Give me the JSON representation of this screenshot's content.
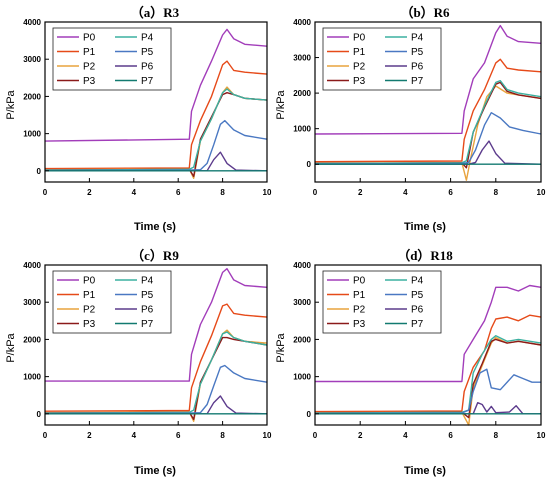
{
  "chart_data": [
    {
      "type": "line",
      "title": "（a）R3",
      "xlabel": "Time (s)",
      "ylabel": "P/kPa",
      "xlim": [
        0,
        10
      ],
      "ylim": [
        -300,
        4000
      ],
      "xticks": [
        "0",
        "2",
        "4",
        "6",
        "8",
        "10"
      ],
      "yticks": [
        "0",
        "1000",
        "2000",
        "3000",
        "4000"
      ],
      "legend_placement": "top-left",
      "series": [
        {
          "name": "P0",
          "color": "#a23dba",
          "x": [
            0,
            6.5,
            6.6,
            7.0,
            7.5,
            8.0,
            8.2,
            8.5,
            9.0,
            10
          ],
          "y": [
            800,
            850,
            1600,
            2300,
            2950,
            3650,
            3800,
            3550,
            3400,
            3350
          ]
        },
        {
          "name": "P1",
          "color": "#e64a19",
          "x": [
            0,
            6.5,
            6.6,
            7.0,
            7.5,
            8.0,
            8.2,
            8.5,
            9.0,
            10
          ],
          "y": [
            60,
            80,
            700,
            1350,
            2000,
            2850,
            2950,
            2700,
            2650,
            2600
          ]
        },
        {
          "name": "P2",
          "color": "#e8a33d",
          "x": [
            0,
            6.5,
            6.7,
            7.0,
            7.5,
            8.0,
            8.2,
            8.5,
            9.0,
            10
          ],
          "y": [
            30,
            50,
            -200,
            800,
            1400,
            2100,
            2250,
            2050,
            1950,
            1900
          ]
        },
        {
          "name": "P3",
          "color": "#8b1a1a",
          "x": [
            0,
            6.5,
            6.7,
            7.0,
            7.5,
            8.0,
            8.2,
            8.5,
            9.0,
            10
          ],
          "y": [
            20,
            40,
            -150,
            850,
            1450,
            2050,
            2100,
            2050,
            1950,
            1900
          ]
        },
        {
          "name": "P4",
          "color": "#3cb0a0",
          "x": [
            0,
            6.5,
            6.7,
            7.0,
            7.5,
            8.0,
            8.2,
            8.5,
            9.0,
            10
          ],
          "y": [
            20,
            40,
            100,
            800,
            1400,
            2100,
            2200,
            2050,
            1950,
            1900
          ]
        },
        {
          "name": "P5",
          "color": "#4a78c2",
          "x": [
            0,
            6.5,
            7.0,
            7.3,
            7.6,
            7.9,
            8.1,
            8.5,
            9.0,
            10
          ],
          "y": [
            10,
            20,
            30,
            200,
            700,
            1250,
            1350,
            1100,
            950,
            850
          ]
        },
        {
          "name": "P6",
          "color": "#5c3b8c",
          "x": [
            0,
            6.5,
            7.0,
            7.3,
            7.6,
            7.9,
            8.2,
            8.6,
            10
          ],
          "y": [
            0,
            0,
            0,
            0,
            300,
            500,
            200,
            20,
            0
          ]
        },
        {
          "name": "P7",
          "color": "#127a70",
          "x": [
            0,
            10
          ],
          "y": [
            0,
            0
          ]
        }
      ]
    },
    {
      "type": "line",
      "title": "（b）R6",
      "xlabel": "Time (s)",
      "ylabel": "P/kPa",
      "xlim": [
        0,
        10
      ],
      "ylim": [
        -500,
        4000
      ],
      "xticks": [
        "0",
        "2",
        "4",
        "6",
        "8",
        "10"
      ],
      "yticks": [
        "0",
        "1000",
        "2000",
        "3000",
        "4000"
      ],
      "legend_placement": "top-left",
      "series": [
        {
          "name": "P0",
          "color": "#a23dba",
          "x": [
            0,
            6.5,
            6.6,
            7.0,
            7.5,
            8.0,
            8.2,
            8.5,
            9.0,
            10
          ],
          "y": [
            850,
            870,
            1500,
            2400,
            2850,
            3700,
            3900,
            3600,
            3450,
            3400
          ]
        },
        {
          "name": "P1",
          "color": "#e64a19",
          "x": [
            0,
            6.5,
            6.6,
            7.0,
            7.5,
            8.0,
            8.2,
            8.5,
            9.0,
            10
          ],
          "y": [
            70,
            90,
            700,
            1500,
            2100,
            2850,
            2950,
            2700,
            2650,
            2600
          ]
        },
        {
          "name": "P2",
          "color": "#e8a33d",
          "x": [
            0,
            6.5,
            6.7,
            6.9,
            7.2,
            7.6,
            8.0,
            8.5,
            9.0,
            10
          ],
          "y": [
            30,
            40,
            -450,
            200,
            1100,
            1900,
            2200,
            2000,
            1950,
            1850
          ]
        },
        {
          "name": "P3",
          "color": "#8b1a1a",
          "x": [
            0,
            6.5,
            6.7,
            7.0,
            7.5,
            8.0,
            8.2,
            8.5,
            9.0,
            10
          ],
          "y": [
            20,
            40,
            -100,
            900,
            1600,
            2250,
            2300,
            2050,
            1950,
            1850
          ]
        },
        {
          "name": "P4",
          "color": "#3cb0a0",
          "x": [
            0,
            6.5,
            6.7,
            7.0,
            7.5,
            8.0,
            8.2,
            8.5,
            9.0,
            10
          ],
          "y": [
            20,
            40,
            100,
            900,
            1650,
            2300,
            2350,
            2100,
            2000,
            1900
          ]
        },
        {
          "name": "P5",
          "color": "#4a78c2",
          "x": [
            0,
            6.5,
            6.8,
            7.1,
            7.5,
            7.8,
            8.2,
            8.6,
            9.2,
            10
          ],
          "y": [
            10,
            20,
            50,
            400,
            1100,
            1450,
            1300,
            1050,
            950,
            850
          ]
        },
        {
          "name": "P6",
          "color": "#5c3b8c",
          "x": [
            0,
            6.5,
            6.8,
            7.1,
            7.4,
            7.7,
            8.0,
            8.4,
            10
          ],
          "y": [
            0,
            0,
            0,
            50,
            400,
            650,
            300,
            30,
            0
          ]
        },
        {
          "name": "P7",
          "color": "#127a70",
          "x": [
            0,
            10
          ],
          "y": [
            0,
            0
          ]
        }
      ]
    },
    {
      "type": "line",
      "title": "（c）R9",
      "xlabel": "Time (s)",
      "ylabel": "P/kPa",
      "xlim": [
        0,
        10
      ],
      "ylim": [
        -300,
        4000
      ],
      "xticks": [
        "0",
        "2",
        "4",
        "6",
        "8",
        "10"
      ],
      "yticks": [
        "0",
        "1000",
        "2000",
        "3000",
        "4000"
      ],
      "legend_placement": "top-left",
      "series": [
        {
          "name": "P0",
          "color": "#a23dba",
          "x": [
            0,
            6.5,
            6.6,
            7.0,
            7.5,
            8.0,
            8.2,
            8.5,
            9.0,
            10
          ],
          "y": [
            880,
            880,
            1600,
            2400,
            3000,
            3800,
            3900,
            3600,
            3450,
            3400
          ]
        },
        {
          "name": "P1",
          "color": "#e64a19",
          "x": [
            0,
            6.5,
            6.6,
            7.0,
            7.5,
            8.0,
            8.2,
            8.5,
            9.0,
            10
          ],
          "y": [
            70,
            90,
            700,
            1400,
            2100,
            2900,
            2950,
            2700,
            2650,
            2600
          ]
        },
        {
          "name": "P2",
          "color": "#e8a33d",
          "x": [
            0,
            6.5,
            6.7,
            7.0,
            7.5,
            8.0,
            8.2,
            8.5,
            9.0,
            10
          ],
          "y": [
            30,
            50,
            -200,
            800,
            1450,
            2150,
            2250,
            2050,
            1950,
            1900
          ]
        },
        {
          "name": "P3",
          "color": "#8b1a1a",
          "x": [
            0,
            6.5,
            6.7,
            7.0,
            7.5,
            8.0,
            8.2,
            8.5,
            9.0,
            10
          ],
          "y": [
            20,
            40,
            -150,
            850,
            1450,
            2050,
            2050,
            2000,
            1950,
            1850
          ]
        },
        {
          "name": "P4",
          "color": "#3cb0a0",
          "x": [
            0,
            6.5,
            6.7,
            7.0,
            7.5,
            8.0,
            8.2,
            8.5,
            9.0,
            10
          ],
          "y": [
            20,
            40,
            100,
            800,
            1450,
            2150,
            2200,
            2050,
            1950,
            1850
          ]
        },
        {
          "name": "P5",
          "color": "#4a78c2",
          "x": [
            0,
            6.5,
            7.0,
            7.3,
            7.6,
            7.9,
            8.1,
            8.5,
            9.0,
            10
          ],
          "y": [
            10,
            20,
            30,
            250,
            750,
            1250,
            1300,
            1100,
            950,
            850
          ]
        },
        {
          "name": "P6",
          "color": "#5c3b8c",
          "x": [
            0,
            6.5,
            7.0,
            7.3,
            7.6,
            7.9,
            8.2,
            8.6,
            10
          ],
          "y": [
            0,
            0,
            0,
            0,
            300,
            480,
            200,
            20,
            0
          ]
        },
        {
          "name": "P7",
          "color": "#127a70",
          "x": [
            0,
            10
          ],
          "y": [
            0,
            0
          ]
        }
      ]
    },
    {
      "type": "line",
      "title": "（d）R18",
      "xlabel": "Time (s)",
      "ylabel": "P/kPa",
      "xlim": [
        0,
        10
      ],
      "ylim": [
        -300,
        4000
      ],
      "xticks": [
        "0",
        "2",
        "4",
        "6",
        "8",
        "10"
      ],
      "yticks": [
        "0",
        "1000",
        "2000",
        "3000",
        "4000"
      ],
      "legend_placement": "top-left",
      "series": [
        {
          "name": "P0",
          "color": "#a23dba",
          "x": [
            0,
            6.5,
            6.6,
            7.0,
            7.5,
            7.8,
            8.0,
            8.5,
            9.0,
            9.5,
            10
          ],
          "y": [
            870,
            870,
            1600,
            2000,
            2500,
            3000,
            3400,
            3400,
            3300,
            3450,
            3400
          ]
        },
        {
          "name": "P1",
          "color": "#e64a19",
          "x": [
            0,
            6.5,
            6.6,
            7.0,
            7.5,
            7.8,
            8.0,
            8.5,
            9.0,
            9.5,
            10
          ],
          "y": [
            60,
            80,
            600,
            1250,
            1700,
            2300,
            2550,
            2600,
            2500,
            2650,
            2600
          ]
        },
        {
          "name": "P2",
          "color": "#e8a33d",
          "x": [
            0,
            6.5,
            6.8,
            7.0,
            7.4,
            7.8,
            8.0,
            8.5,
            9.0,
            10
          ],
          "y": [
            30,
            40,
            -300,
            700,
            1300,
            1900,
            2050,
            1900,
            1950,
            1850
          ]
        },
        {
          "name": "P3",
          "color": "#8b1a1a",
          "x": [
            0,
            6.5,
            6.8,
            7.0,
            7.4,
            7.8,
            8.0,
            8.5,
            9.0,
            10
          ],
          "y": [
            20,
            40,
            -100,
            800,
            1350,
            1950,
            2000,
            1900,
            1950,
            1850
          ]
        },
        {
          "name": "P4",
          "color": "#3cb0a0",
          "x": [
            0,
            6.5,
            6.8,
            7.0,
            7.4,
            7.8,
            8.0,
            8.5,
            9.0,
            10
          ],
          "y": [
            20,
            40,
            100,
            1100,
            1600,
            2000,
            2100,
            1950,
            2000,
            1900
          ]
        },
        {
          "name": "P5",
          "color": "#4a78c2",
          "x": [
            0,
            6.5,
            6.8,
            7.0,
            7.3,
            7.6,
            7.8,
            8.2,
            8.8,
            9.2,
            9.6,
            10
          ],
          "y": [
            10,
            20,
            100,
            600,
            1100,
            1200,
            700,
            650,
            1050,
            950,
            850,
            850
          ]
        },
        {
          "name": "P6",
          "color": "#5c3b8c",
          "x": [
            0,
            6.5,
            7.0,
            7.2,
            7.4,
            7.6,
            7.8,
            8.0,
            8.6,
            8.9,
            9.2,
            10
          ],
          "y": [
            0,
            0,
            0,
            300,
            250,
            50,
            200,
            30,
            50,
            220,
            0,
            0
          ]
        },
        {
          "name": "P7",
          "color": "#127a70",
          "x": [
            0,
            10
          ],
          "y": [
            0,
            0
          ]
        }
      ]
    }
  ]
}
